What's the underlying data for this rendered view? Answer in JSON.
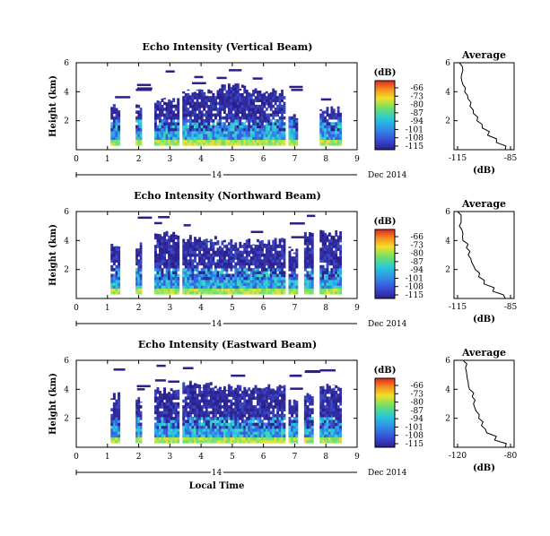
{
  "chart_data": [
    {
      "type": "heatmap",
      "title": "Echo Intensity (Vertical Beam)",
      "ylabel": "Height (km)",
      "xlabel": "",
      "xlim": [
        0,
        9
      ],
      "ylim": [
        0,
        6
      ],
      "x_ticks": [
        "0",
        "1",
        "2",
        "3",
        "4",
        "5",
        "6",
        "7",
        "8",
        "9"
      ],
      "y_ticks": [
        "2",
        "4",
        "6"
      ],
      "day_label": "14",
      "date_label": "Dec 2014",
      "colorbar": {
        "unit": "(dB)",
        "ticks": [
          "-66",
          "-73",
          "-80",
          "-87",
          "-94",
          "-101",
          "-108",
          "-115"
        ]
      },
      "segments": [
        {
          "t0": 1.1,
          "t1": 1.4,
          "top": 3.2
        },
        {
          "t0": 1.9,
          "t1": 2.1,
          "top": 3.2
        },
        {
          "t0": 2.5,
          "t1": 3.3,
          "top": 3.6
        },
        {
          "t0": 3.4,
          "t1": 4.5,
          "top": 4.2
        },
        {
          "t0": 4.5,
          "t1": 5.5,
          "top": 4.6
        },
        {
          "t0": 5.5,
          "t1": 6.7,
          "top": 4.3
        },
        {
          "t0": 6.8,
          "t1": 7.1,
          "top": 2.6
        },
        {
          "t0": 7.8,
          "t1": 8.5,
          "top": 3.0
        }
      ],
      "average": {
        "title": "Average",
        "xlabel": "(dB)",
        "x_ticks": [
          "-115",
          "-85"
        ],
        "xlim": [
          -115,
          -85
        ],
        "height": [
          0,
          0.5,
          1,
          1.5,
          2,
          2.5,
          3,
          3.5,
          4,
          4.5,
          5,
          5.5,
          6
        ],
        "value": [
          -88,
          -93,
          -98,
          -101,
          -104,
          -106,
          -108,
          -109,
          -111,
          -112,
          -113,
          -112,
          -114
        ]
      }
    },
    {
      "type": "heatmap",
      "title": "Echo Intensity (Northward Beam)",
      "ylabel": "Height (km)",
      "xlabel": "",
      "xlim": [
        0,
        9
      ],
      "ylim": [
        0,
        6
      ],
      "x_ticks": [
        "0",
        "1",
        "2",
        "3",
        "4",
        "5",
        "6",
        "7",
        "8",
        "9"
      ],
      "y_ticks": [
        "2",
        "4",
        "6"
      ],
      "day_label": "14",
      "date_label": "Dec 2014",
      "colorbar": {
        "unit": "(dB)",
        "ticks": [
          "-66",
          "-73",
          "-80",
          "-87",
          "-94",
          "-101",
          "-108",
          "-115"
        ]
      },
      "segments": [
        {
          "t0": 1.1,
          "t1": 1.4,
          "top": 3.8
        },
        {
          "t0": 1.9,
          "t1": 2.1,
          "top": 3.9
        },
        {
          "t0": 2.5,
          "t1": 3.3,
          "top": 4.7
        },
        {
          "t0": 3.4,
          "t1": 4.5,
          "top": 4.4
        },
        {
          "t0": 4.5,
          "t1": 5.5,
          "top": 4.1
        },
        {
          "t0": 5.5,
          "t1": 6.7,
          "top": 4.2
        },
        {
          "t0": 6.8,
          "t1": 7.1,
          "top": 3.6
        },
        {
          "t0": 7.3,
          "t1": 7.6,
          "top": 4.6
        },
        {
          "t0": 7.8,
          "t1": 8.5,
          "top": 4.8
        }
      ],
      "average": {
        "title": "Average",
        "xlabel": "(dB)",
        "x_ticks": [
          "-115",
          "-85"
        ],
        "xlim": [
          -115,
          -85
        ],
        "height": [
          0,
          0.5,
          1,
          1.5,
          2,
          2.5,
          3,
          3.5,
          4,
          4.5,
          5,
          5.5,
          6
        ],
        "value": [
          -88,
          -95,
          -100,
          -103,
          -105,
          -107,
          -109,
          -110,
          -112,
          -112,
          -114,
          -113,
          -115
        ]
      }
    },
    {
      "type": "heatmap",
      "title": "Echo Intensity (Eastward Beam)",
      "ylabel": "Height (km)",
      "xlabel": "Local Time",
      "xlim": [
        0,
        9
      ],
      "ylim": [
        0,
        6
      ],
      "x_ticks": [
        "0",
        "1",
        "2",
        "3",
        "4",
        "5",
        "6",
        "7",
        "8",
        "9"
      ],
      "y_ticks": [
        "2",
        "4",
        "6"
      ],
      "day_label": "14",
      "date_label": "Dec 2014",
      "colorbar": {
        "unit": "(dB)",
        "ticks": [
          "-66",
          "-73",
          "-80",
          "-87",
          "-94",
          "-101",
          "-108",
          "-115"
        ]
      },
      "segments": [
        {
          "t0": 1.1,
          "t1": 1.4,
          "top": 3.8
        },
        {
          "t0": 1.9,
          "t1": 2.1,
          "top": 3.6
        },
        {
          "t0": 2.5,
          "t1": 3.3,
          "top": 4.2
        },
        {
          "t0": 3.4,
          "t1": 4.5,
          "top": 4.6
        },
        {
          "t0": 4.5,
          "t1": 5.5,
          "top": 4.4
        },
        {
          "t0": 5.5,
          "t1": 6.7,
          "top": 4.4
        },
        {
          "t0": 6.8,
          "t1": 7.1,
          "top": 3.3
        },
        {
          "t0": 7.3,
          "t1": 7.6,
          "top": 3.9
        },
        {
          "t0": 7.8,
          "t1": 8.5,
          "top": 4.4
        }
      ],
      "average": {
        "title": "Average",
        "xlabel": "(dB)",
        "x_ticks": [
          "-120",
          "-80"
        ],
        "xlim": [
          -120,
          -80
        ],
        "height": [
          0,
          0.5,
          1,
          1.5,
          2,
          2.5,
          3,
          3.5,
          4,
          4.5,
          5,
          5.5,
          6
        ],
        "value": [
          -84,
          -92,
          -98,
          -102,
          -104,
          -106,
          -108,
          -109,
          -111,
          -112,
          -113,
          -114,
          -116
        ]
      }
    }
  ]
}
